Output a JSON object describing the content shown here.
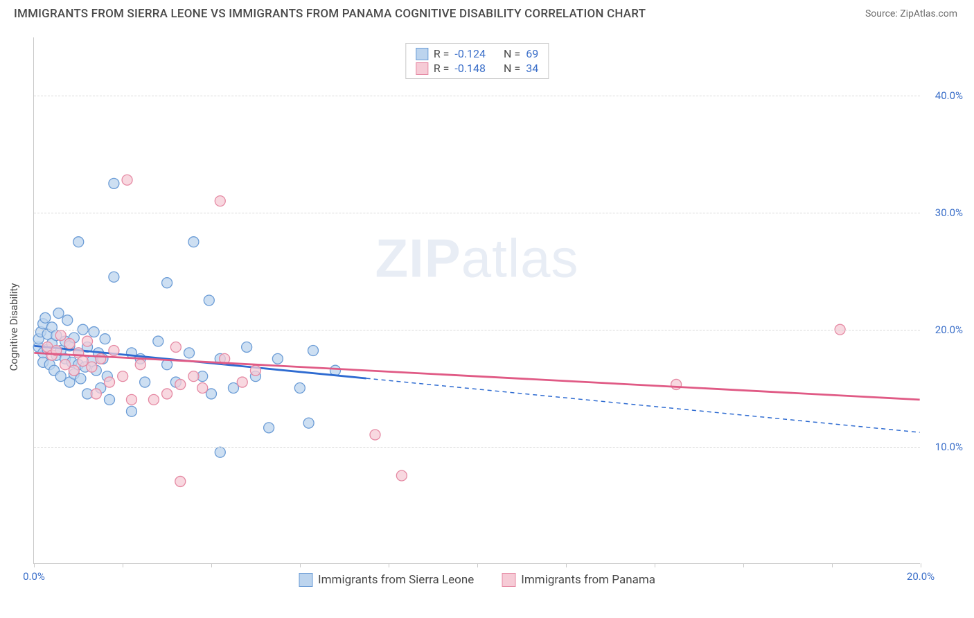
{
  "title": "IMMIGRANTS FROM SIERRA LEONE VS IMMIGRANTS FROM PANAMA COGNITIVE DISABILITY CORRELATION CHART",
  "source": "Source: ZipAtlas.com",
  "ylabel": "Cognitive Disability",
  "watermark_bold": "ZIP",
  "watermark_light": "atlas",
  "chart": {
    "type": "scatter",
    "xlim": [
      0,
      20
    ],
    "ylim": [
      0,
      45
    ],
    "x_ticks": [
      0,
      2,
      4,
      6,
      8,
      10,
      12,
      14,
      16,
      18,
      20
    ],
    "x_tick_labels": {
      "0": "0.0%",
      "20": "20.0%"
    },
    "y_ticks": [
      10,
      20,
      30,
      40
    ],
    "y_tick_labels": {
      "10": "10.0%",
      "20": "20.0%",
      "30": "30.0%",
      "40": "40.0%"
    },
    "background_color": "#ffffff",
    "grid_color": "#d8d8d8",
    "axis_color": "#c9c9c9",
    "tick_label_color": "#3b6fc9",
    "series": [
      {
        "name": "Immigrants from Sierra Leone",
        "fill": "#bcd4ee",
        "stroke": "#6b9cd6",
        "line_color": "#2e6bd1",
        "stats_R": "-0.124",
        "stats_N": "69",
        "trend": {
          "x1": 0,
          "y1": 18.6,
          "x2": 20,
          "y2": 11.2,
          "solid_until_x": 7.5
        },
        "points": [
          [
            0.1,
            18.5
          ],
          [
            0.1,
            19.2
          ],
          [
            0.15,
            19.8
          ],
          [
            0.2,
            18.0
          ],
          [
            0.2,
            20.5
          ],
          [
            0.2,
            17.2
          ],
          [
            0.25,
            21.0
          ],
          [
            0.3,
            18.3
          ],
          [
            0.3,
            19.6
          ],
          [
            0.35,
            17.0
          ],
          [
            0.4,
            20.2
          ],
          [
            0.4,
            18.8
          ],
          [
            0.45,
            16.5
          ],
          [
            0.5,
            19.5
          ],
          [
            0.5,
            17.8
          ],
          [
            0.55,
            21.4
          ],
          [
            0.6,
            18.2
          ],
          [
            0.6,
            16.0
          ],
          [
            0.7,
            19.0
          ],
          [
            0.7,
            17.5
          ],
          [
            0.75,
            20.8
          ],
          [
            0.8,
            18.6
          ],
          [
            0.8,
            15.5
          ],
          [
            0.85,
            17.2
          ],
          [
            0.9,
            19.3
          ],
          [
            0.9,
            16.2
          ],
          [
            1.0,
            18.0
          ],
          [
            1.0,
            17.0
          ],
          [
            1.05,
            15.8
          ],
          [
            1.1,
            20.0
          ],
          [
            1.15,
            16.8
          ],
          [
            1.2,
            18.5
          ],
          [
            1.2,
            14.5
          ],
          [
            1.3,
            17.3
          ],
          [
            1.35,
            19.8
          ],
          [
            1.4,
            16.5
          ],
          [
            1.45,
            18.0
          ],
          [
            1.5,
            15.0
          ],
          [
            1.55,
            17.5
          ],
          [
            1.6,
            19.2
          ],
          [
            1.65,
            16.0
          ],
          [
            1.7,
            14.0
          ],
          [
            1.0,
            27.5
          ],
          [
            1.8,
            32.5
          ],
          [
            1.8,
            24.5
          ],
          [
            2.2,
            18.0
          ],
          [
            2.2,
            13.0
          ],
          [
            2.4,
            17.5
          ],
          [
            2.5,
            15.5
          ],
          [
            2.8,
            19.0
          ],
          [
            3.0,
            17.0
          ],
          [
            3.0,
            24.0
          ],
          [
            3.2,
            15.5
          ],
          [
            3.5,
            18.0
          ],
          [
            3.6,
            27.5
          ],
          [
            3.8,
            16.0
          ],
          [
            3.95,
            22.5
          ],
          [
            4.0,
            14.5
          ],
          [
            4.2,
            17.5
          ],
          [
            4.2,
            9.5
          ],
          [
            4.5,
            15.0
          ],
          [
            4.8,
            18.5
          ],
          [
            5.0,
            16.0
          ],
          [
            5.3,
            11.6
          ],
          [
            5.5,
            17.5
          ],
          [
            6.0,
            15.0
          ],
          [
            6.3,
            18.2
          ],
          [
            6.2,
            12.0
          ],
          [
            6.8,
            16.5
          ]
        ]
      },
      {
        "name": "Immigrants from Panama",
        "fill": "#f6cbd6",
        "stroke": "#e589a3",
        "line_color": "#e05a85",
        "stats_R": "-0.148",
        "stats_N": "34",
        "trend": {
          "x1": 0,
          "y1": 18.0,
          "x2": 20,
          "y2": 14.0,
          "solid_until_x": 20
        },
        "points": [
          [
            0.3,
            18.5
          ],
          [
            0.4,
            17.8
          ],
          [
            0.5,
            18.2
          ],
          [
            0.6,
            19.5
          ],
          [
            0.7,
            17.0
          ],
          [
            0.8,
            18.8
          ],
          [
            0.9,
            16.5
          ],
          [
            1.0,
            18.0
          ],
          [
            1.1,
            17.3
          ],
          [
            1.2,
            19.0
          ],
          [
            1.3,
            16.8
          ],
          [
            1.4,
            14.5
          ],
          [
            1.5,
            17.5
          ],
          [
            1.7,
            15.5
          ],
          [
            1.8,
            18.2
          ],
          [
            2.0,
            16.0
          ],
          [
            2.2,
            14.0
          ],
          [
            2.1,
            32.8
          ],
          [
            2.4,
            17.0
          ],
          [
            2.7,
            14.0
          ],
          [
            3.0,
            14.5
          ],
          [
            3.2,
            18.5
          ],
          [
            3.3,
            15.3
          ],
          [
            3.3,
            7.0
          ],
          [
            3.6,
            16.0
          ],
          [
            3.8,
            15.0
          ],
          [
            4.2,
            31.0
          ],
          [
            4.3,
            17.5
          ],
          [
            4.7,
            15.5
          ],
          [
            7.7,
            11.0
          ],
          [
            8.3,
            7.5
          ],
          [
            14.5,
            15.3
          ],
          [
            18.2,
            20.0
          ],
          [
            5.0,
            16.5
          ]
        ]
      }
    ]
  },
  "stats_labels": {
    "R": "R =",
    "N": "N ="
  },
  "legend_label_1": "Immigrants from Sierra Leone",
  "legend_label_2": "Immigrants from Panama"
}
